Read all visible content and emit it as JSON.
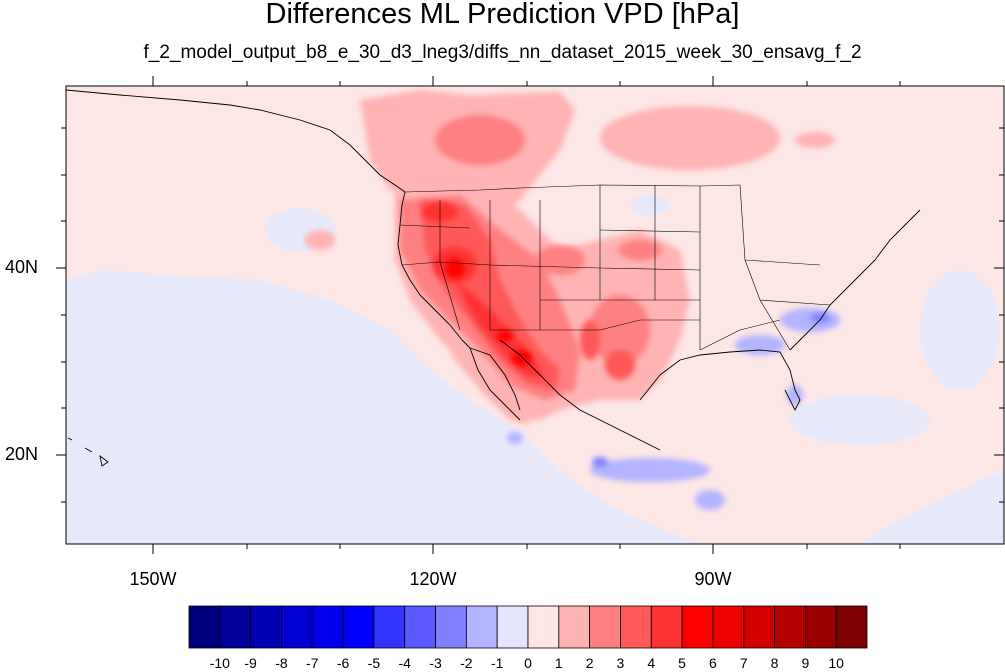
{
  "header": {
    "title": "Differences ML Prediction VPD [hPa]",
    "subtitle": "f_2_model_output_b8_e_30_d3_lneg3/diffs_nn_dataset_2015_week_30_ensavg_f_2"
  },
  "axes": {
    "lon_labels": [
      "150W",
      "120W",
      "90W"
    ],
    "lat_labels": [
      "40N",
      "20N"
    ]
  },
  "colorbar": {
    "labels": [
      "-10",
      "-9",
      "-8",
      "-7",
      "-6",
      "-5",
      "-4",
      "-3",
      "-2",
      "-1",
      "0",
      "1",
      "2",
      "3",
      "4",
      "5",
      "6",
      "7",
      "8",
      "9",
      "10"
    ],
    "colors": [
      "#00007f",
      "#00009a",
      "#0000b6",
      "#0000d1",
      "#0000ec",
      "#0000ff",
      "#3333ff",
      "#5959ff",
      "#8080ff",
      "#b3b3ff",
      "#e5e5ff",
      "#ffe5e5",
      "#ffb3b3",
      "#ff8080",
      "#ff5959",
      "#ff3333",
      "#ff0000",
      "#ec0000",
      "#d10000",
      "#b60000",
      "#9a0000",
      "#7f0000"
    ]
  },
  "colors": {
    "ocean_background": "#e8e8fb",
    "land_background": "#fde6e6"
  }
}
